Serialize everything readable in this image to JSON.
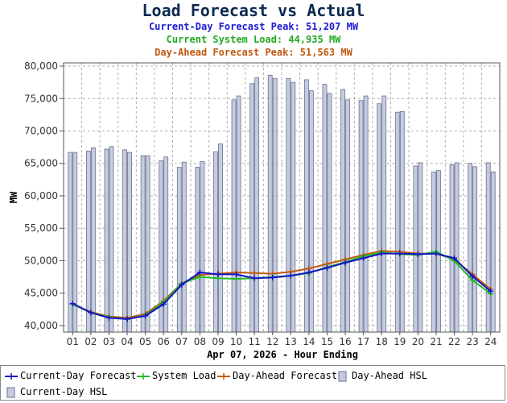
{
  "title": "Load Forecast vs Actual",
  "subtitles": [
    {
      "text": "Current-Day Forecast Peak:  51,207 MW",
      "color": "#1a1ad4"
    },
    {
      "text": "Current System Load:  44,935 MW",
      "color": "#22aa22"
    },
    {
      "text": "Day-Ahead Forecast Peak:  51,563 MW",
      "color": "#c05a10"
    }
  ],
  "colors": {
    "current_day": "#1414c8",
    "system_load": "#22bb22",
    "day_ahead": "#c05a10",
    "bar_fill": "#c5cce0",
    "bar_stroke": "#6a7090",
    "grid": "#b0b0b0"
  },
  "chart_data": {
    "type": "bar",
    "xlabel": "Apr 07, 2026 - Hour Ending",
    "ylabel": "MW",
    "ylim": [
      39000,
      80500
    ],
    "yticks": [
      40000,
      45000,
      50000,
      55000,
      60000,
      65000,
      70000,
      75000,
      80000
    ],
    "ytick_labels": [
      "40,000",
      "45,000",
      "50,000",
      "55,000",
      "60,000",
      "65,000",
      "70,000",
      "75,000",
      "80,000"
    ],
    "categories": [
      "01",
      "02",
      "03",
      "04",
      "05",
      "06",
      "07",
      "08",
      "09",
      "10",
      "11",
      "12",
      "13",
      "14",
      "15",
      "16",
      "17",
      "18",
      "19",
      "20",
      "21",
      "22",
      "23",
      "24"
    ],
    "grid": true,
    "legend_placement": "bottom",
    "series": [
      {
        "name": "Current-Day Forecast",
        "kind": "line",
        "values": [
          43400,
          42000,
          41200,
          41000,
          41500,
          43300,
          46300,
          48200,
          47900,
          47900,
          47300,
          47400,
          47700,
          48200,
          48900,
          49700,
          50400,
          51100,
          51100,
          51000,
          51100,
          50400,
          47600,
          45300
        ]
      },
      {
        "name": "System Load",
        "kind": "line",
        "values": [
          43300,
          42000,
          41300,
          41000,
          41600,
          43600,
          46500,
          47500,
          47300,
          47200,
          47300,
          47500,
          47700,
          48100,
          49000,
          49800,
          50700,
          51300,
          51000,
          50900,
          51400,
          50000,
          47000,
          44900
        ]
      },
      {
        "name": "Day-Ahead Forecast",
        "kind": "line",
        "values": [
          43300,
          42100,
          41400,
          41200,
          41800,
          43800,
          46500,
          47800,
          48000,
          48200,
          48100,
          48000,
          48300,
          48800,
          49500,
          50200,
          50900,
          51500,
          51400,
          51100,
          51100,
          50200,
          47900,
          45600
        ]
      },
      {
        "name": "Day-Ahead HSL",
        "kind": "bar",
        "values": [
          66700,
          66900,
          67200,
          67100,
          66200,
          65400,
          64400,
          64400,
          66800,
          74800,
          77300,
          78600,
          78100,
          77900,
          77200,
          76400,
          74700,
          74200,
          72900,
          64600,
          63700,
          64800,
          65000,
          65100
        ]
      },
      {
        "name": "Current-Day HSL",
        "kind": "bar",
        "values": [
          66700,
          67400,
          67600,
          66700,
          66200,
          66000,
          65200,
          65300,
          68000,
          75400,
          78200,
          78100,
          77500,
          76200,
          75800,
          74800,
          75400,
          75400,
          73000,
          65100,
          63900,
          65100,
          64500,
          63700
        ]
      }
    ]
  }
}
